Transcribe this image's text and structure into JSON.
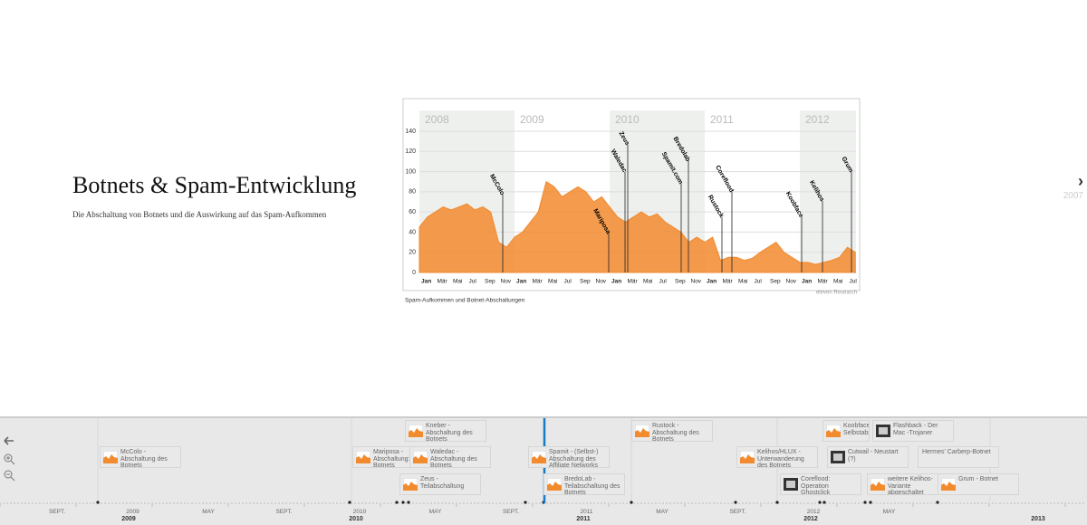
{
  "slide": {
    "title": "Botnets & Spam-Entwicklung",
    "text": "Die Abschaltung von Botnets und die Auswirkung auf das Spam-Aufkommen"
  },
  "next": {
    "label": "2007"
  },
  "media": {
    "type": "area",
    "color": "#f28a2e",
    "years": [
      "2008",
      "2009",
      "2010",
      "2011",
      "2012"
    ],
    "x": [
      "2008-01",
      "2008-02",
      "2008-03",
      "2008-04",
      "2008-05",
      "2008-06",
      "2008-07",
      "2008-08",
      "2008-09",
      "2008-10",
      "2008-11",
      "2008-12",
      "2009-01",
      "2009-02",
      "2009-03",
      "2009-04",
      "2009-05",
      "2009-06",
      "2009-07",
      "2009-08",
      "2009-09",
      "2009-10",
      "2009-11",
      "2009-12",
      "2010-01",
      "2010-02",
      "2010-03",
      "2010-04",
      "2010-05",
      "2010-06",
      "2010-07",
      "2010-08",
      "2010-09",
      "2010-10",
      "2010-11",
      "2010-12",
      "2011-01",
      "2011-02",
      "2011-03",
      "2011-04",
      "2011-05",
      "2011-06",
      "2011-07",
      "2011-08",
      "2011-09",
      "2011-10",
      "2011-11",
      "2011-12",
      "2012-01",
      "2012-02",
      "2012-03",
      "2012-04",
      "2012-05",
      "2012-06",
      "2012-07",
      "2012-08"
    ],
    "values": [
      45,
      55,
      60,
      65,
      62,
      65,
      68,
      62,
      65,
      60,
      30,
      25,
      35,
      40,
      50,
      60,
      90,
      85,
      75,
      80,
      85,
      80,
      70,
      75,
      65,
      55,
      50,
      55,
      60,
      55,
      58,
      50,
      45,
      40,
      30,
      35,
      30,
      35,
      12,
      15,
      15,
      12,
      14,
      20,
      25,
      30,
      20,
      15,
      10,
      10,
      8,
      10,
      12,
      15,
      25,
      20
    ],
    "ylim": [
      0,
      140
    ],
    "yticks": [
      0,
      20,
      40,
      60,
      80,
      100,
      120,
      140
    ],
    "months": [
      "Jan",
      "Mär",
      "Mai",
      "Jul",
      "Sep",
      "Nov",
      "Jan",
      "Mär",
      "Mai",
      "Jul",
      "Sep",
      "Nov",
      "Jan",
      "Mär",
      "Mai",
      "Jul",
      "Sep",
      "Nov",
      "Jan",
      "Mär",
      "Mai",
      "Jul",
      "Sep",
      "Nov",
      "Jan",
      "Mär",
      "Mai",
      "Jul"
    ],
    "events": [
      "McColo",
      "Mariposa",
      "Zeus",
      "Waledac",
      "Bredolab",
      "Spamit.com",
      "Coreflood",
      "Rustock",
      "Kelihos",
      "Koobface",
      "Grum"
    ],
    "source": "eleven Research",
    "caption": "Spam-Aufkommen und Botnet-Abschaltungen"
  },
  "timeline": {
    "events": [
      "Kneber - Abschaltung des Botnets",
      "McColo - Abschaltung des Botnets",
      "Mariposa - Abschaltung: Botnets",
      "Waledac - Abschaltung des Botnets",
      "Zeus - Teilabschaltung",
      "Spamit - (Selbst-) Abschaltung des Affiliate Networks",
      "BredoLab - Teilabschaltung des Botnets",
      "Rustock - Abschaltung des Botnets",
      "Kelihos/HLUX - Unterwanderung des Botnets",
      "Koobface Selbstabschaltung",
      "Flashback - Der Mac -Trojaner",
      "Cutwail - Neustart (?)",
      "Hermes' Carberp-Botnet",
      "Coreflood: Operation Ghostclick",
      "weitere Kelihos-Variante abgeschaltet",
      "Grum - Botnet"
    ],
    "axis": [
      "SEPT.",
      "2009",
      "MAY",
      "SEPT.",
      "2010",
      "MAY",
      "SEPT.",
      "2011",
      "MAY",
      "SEPT.",
      "2012",
      "MAY"
    ],
    "years": [
      "2009",
      "2010",
      "2011",
      "2012",
      "2013"
    ]
  }
}
